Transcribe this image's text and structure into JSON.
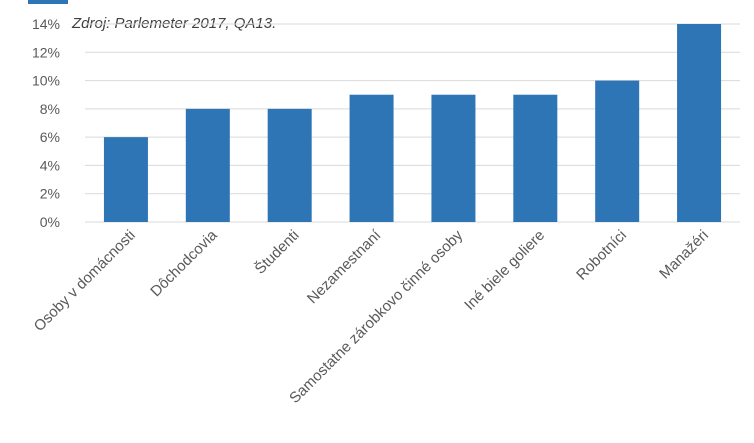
{
  "colors": {
    "bar": "#2e75b6",
    "accent_tab": "#2e75b6",
    "gridline": "#d9d9d9",
    "text": "#595959"
  },
  "chart_data": {
    "type": "bar",
    "title": "",
    "source_note": "Zdroj: Parlemeter 2017, QA13.",
    "xlabel": "",
    "ylabel": "",
    "ylim": [
      0,
      14
    ],
    "y_ticks": [
      0,
      2,
      4,
      6,
      8,
      10,
      12,
      14
    ],
    "y_tick_labels": [
      "0%",
      "2%",
      "4%",
      "6%",
      "8%",
      "10%",
      "12%",
      "14%"
    ],
    "grid": true,
    "legend": "none",
    "categories": [
      "Osoby v domácnosti",
      "Dôchodcovia",
      "Študenti",
      "Nezamestnaní",
      "Samostatne zárobkovo činné osoby",
      "Iné biele goliere",
      "Robotníci",
      "Manažéri"
    ],
    "values": [
      6,
      8,
      8,
      9,
      9,
      9,
      10,
      14
    ]
  }
}
